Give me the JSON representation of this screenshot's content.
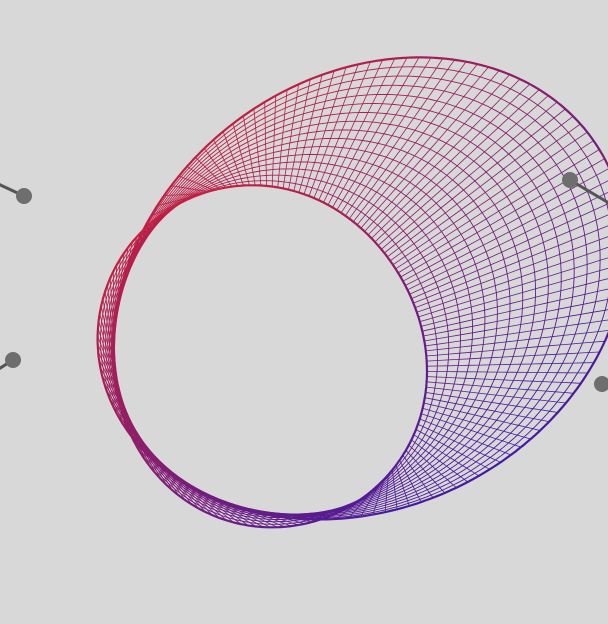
{
  "scene": {
    "subject": "mobius-strip-wireframe",
    "background_color": "#d8d8d8",
    "gradient_start_color": "#c8203c",
    "gradient_end_color": "#3a1aa8",
    "handle_color": "#6e6e6e",
    "connector_color": "#555555"
  }
}
